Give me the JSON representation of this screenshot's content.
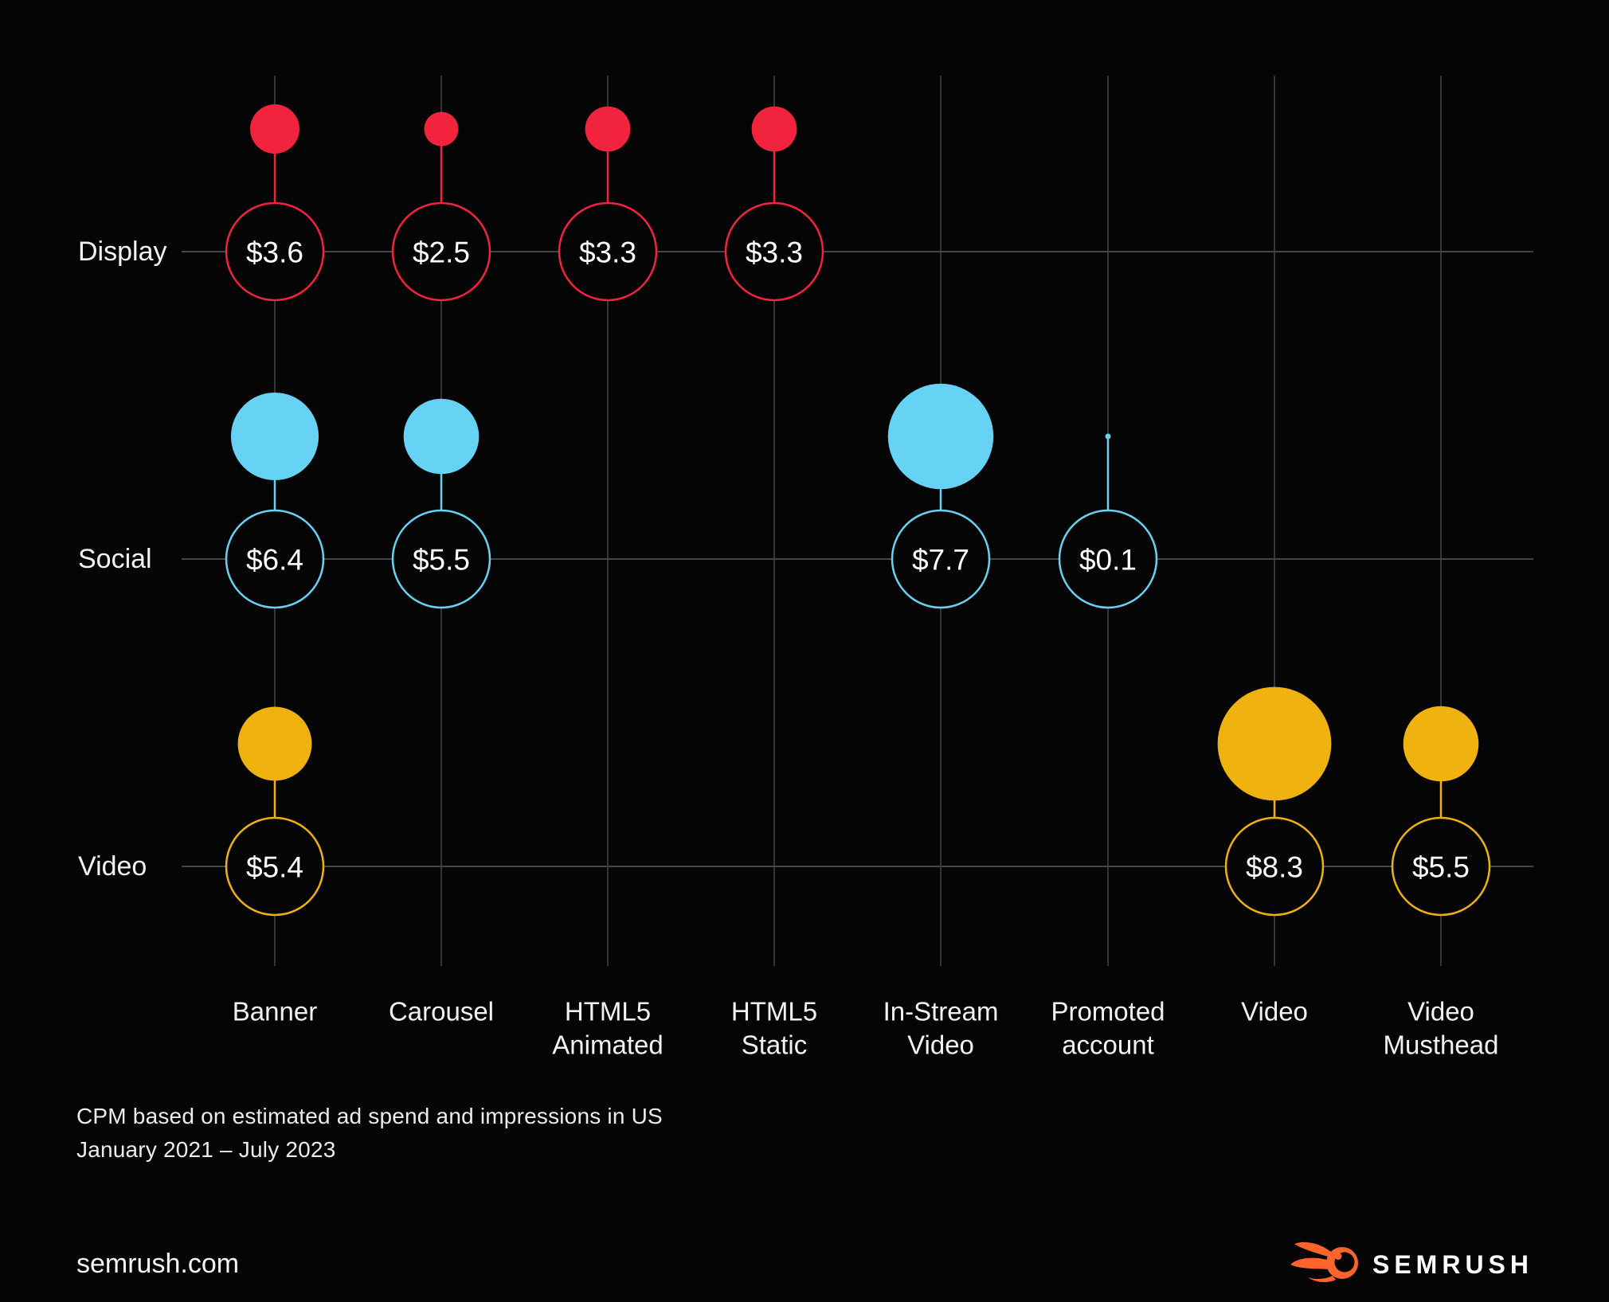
{
  "chart_data": {
    "type": "bubble",
    "rows": [
      "Display",
      "Social",
      "Video"
    ],
    "categories": [
      "Banner",
      "Carousel",
      "HTML5 Animated",
      "HTML5 Static",
      "In-Stream Video",
      "Promoted account",
      "Video",
      "Video Musthead"
    ],
    "category_labels": [
      [
        "Banner"
      ],
      [
        "Carousel"
      ],
      [
        "HTML5",
        "Animated"
      ],
      [
        "HTML5",
        "Static"
      ],
      [
        "In-Stream",
        "Video"
      ],
      [
        "Promoted",
        "account"
      ],
      [
        "Video"
      ],
      [
        "Video",
        "Musthead"
      ]
    ],
    "series": [
      {
        "name": "Display",
        "color": "#f2233c",
        "points": [
          {
            "category": "Banner",
            "value": 3.6,
            "label": "$3.6"
          },
          {
            "category": "Carousel",
            "value": 2.5,
            "label": "$2.5"
          },
          {
            "category": "HTML5 Animated",
            "value": 3.3,
            "label": "$3.3"
          },
          {
            "category": "HTML5 Static",
            "value": 3.3,
            "label": "$3.3"
          }
        ]
      },
      {
        "name": "Social",
        "color": "#66d3f4",
        "points": [
          {
            "category": "Banner",
            "value": 6.4,
            "label": "$6.4"
          },
          {
            "category": "Carousel",
            "value": 5.5,
            "label": "$5.5"
          },
          {
            "category": "In-Stream Video",
            "value": 7.7,
            "label": "$7.7"
          },
          {
            "category": "Promoted account",
            "value": 0.1,
            "label": "$0.1"
          }
        ]
      },
      {
        "name": "Video",
        "color": "#f0b20f",
        "points": [
          {
            "category": "Banner",
            "value": 5.4,
            "label": "$5.4"
          },
          {
            "category": "Video",
            "value": 8.3,
            "label": "$8.3"
          },
          {
            "category": "Video Musthead",
            "value": 5.5,
            "label": "$5.5"
          }
        ]
      }
    ],
    "grid": true,
    "legend_position": "none"
  },
  "footnote": {
    "line1": "CPM based on estimated ad spend and impressions in US",
    "line2": "January 2021 – July 2023"
  },
  "footer": {
    "site_label": "semrush.com",
    "brand_wordmark": "SEMRUSH"
  },
  "colors": {
    "background": "#050505",
    "grid_vertical": "#363636",
    "grid_horizontal": "#454545",
    "value_text": "#ffffff",
    "axis_text": "#f2f2f2",
    "logo_orange": "#ff642d"
  }
}
